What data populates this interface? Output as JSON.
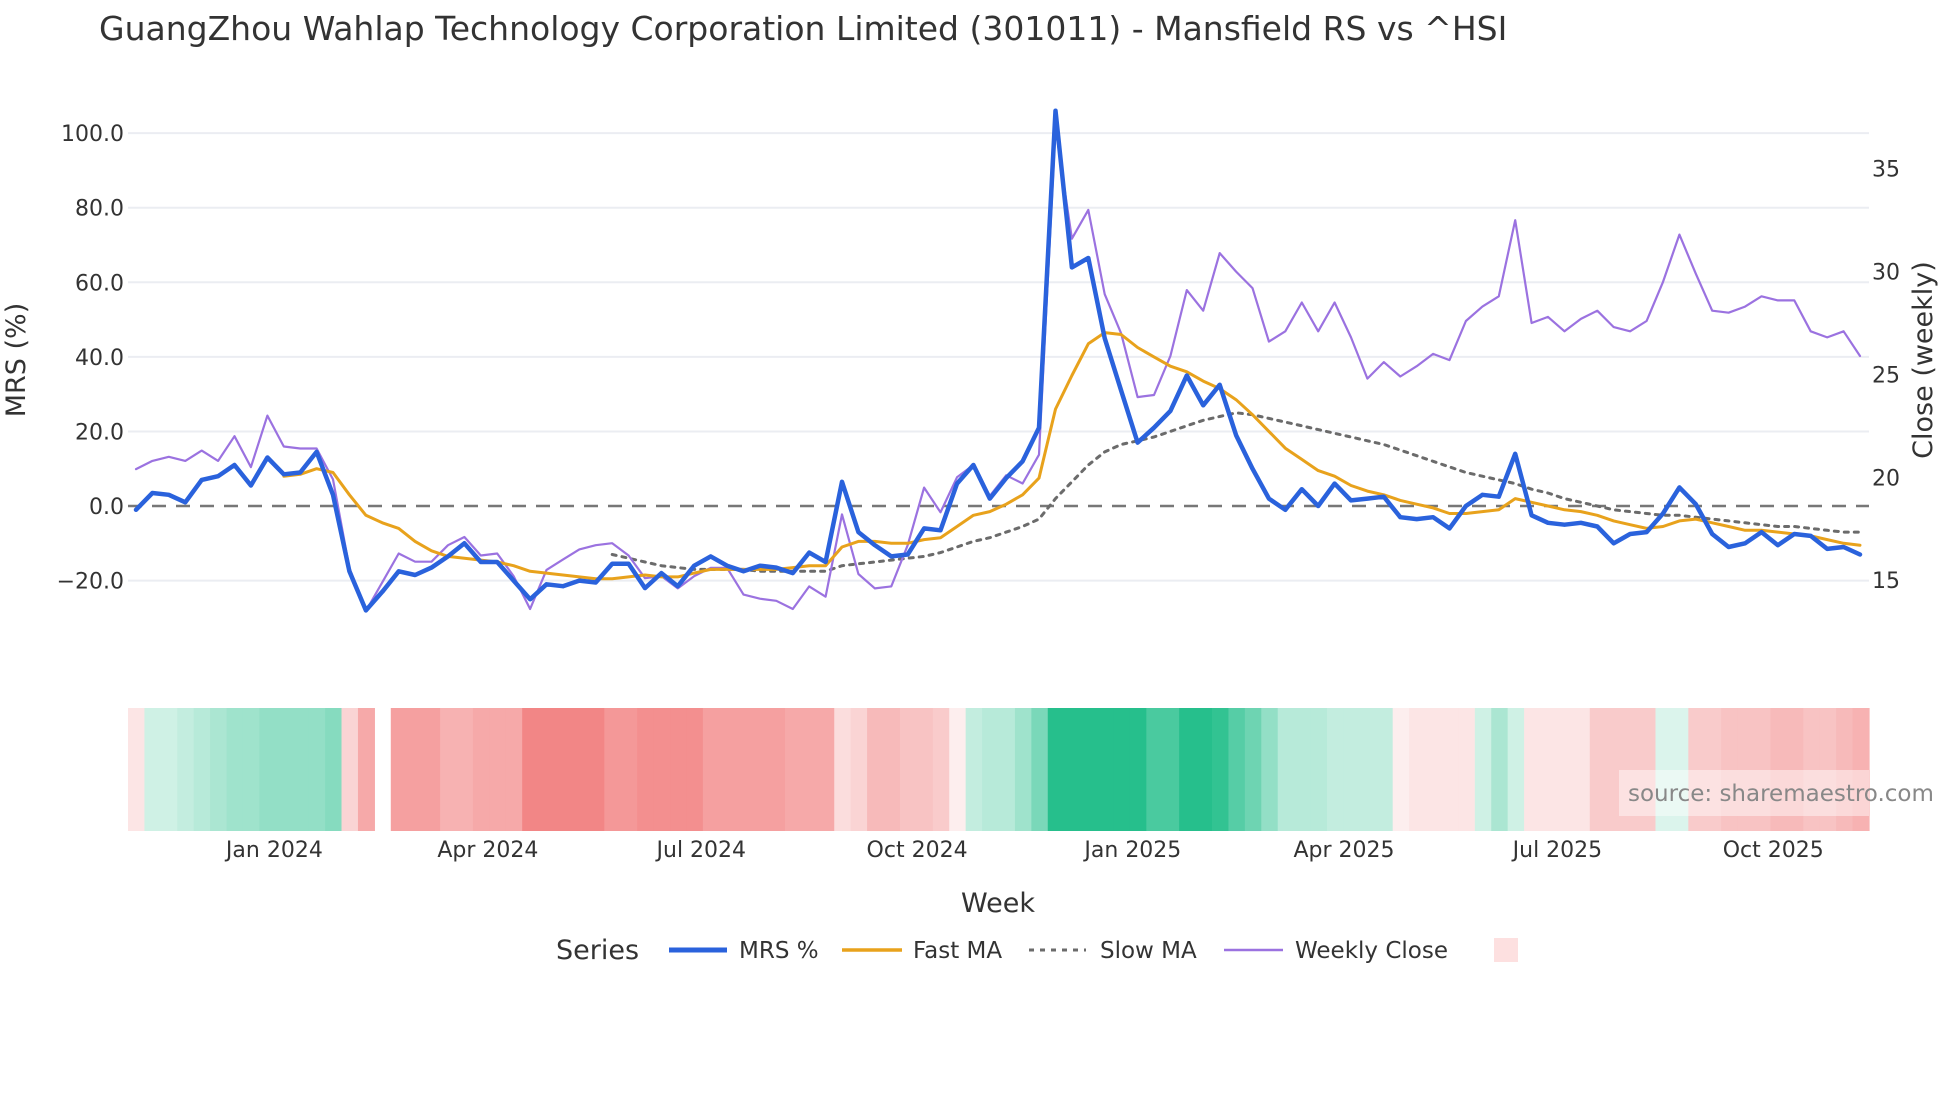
{
  "title": "GuangZhou Wahlap Technology Corporation Limited (301011) - Mansfield RS vs ^HSI",
  "watermark": "source: sharemaestro.com",
  "legend": {
    "title": "Series",
    "items": [
      {
        "label": "MRS %",
        "color": "#2a62dc",
        "style": "solid-thick"
      },
      {
        "label": "Fast MA",
        "color": "#e8a21c",
        "style": "solid"
      },
      {
        "label": "Slow MA",
        "color": "#6b6b6b",
        "style": "dotted"
      },
      {
        "label": "Weekly Close",
        "color": "#9b72e0",
        "style": "solid-thin"
      },
      {
        "label": "",
        "color": "#fde0e0",
        "style": "swatch"
      }
    ]
  },
  "chart_data": {
    "type": "line",
    "title": "GuangZhou Wahlap Technology Corporation Limited (301011) - Mansfield RS vs ^HSI",
    "xlabel": "Week",
    "ylabel": "MRS (%)",
    "y2label": "Close (weekly)",
    "x_start": "2023-11-03",
    "x_step_days": 7,
    "x_ticks": [
      {
        "date": "2024-01-01",
        "label": "Jan 2024"
      },
      {
        "date": "2024-04-01",
        "label": "Apr 2024"
      },
      {
        "date": "2024-07-01",
        "label": "Jul 2024"
      },
      {
        "date": "2024-10-01",
        "label": "Oct 2024"
      },
      {
        "date": "2025-01-01",
        "label": "Jan 2025"
      },
      {
        "date": "2025-04-01",
        "label": "Apr 2025"
      },
      {
        "date": "2025-07-01",
        "label": "Jul 2025"
      },
      {
        "date": "2025-10-01",
        "label": "Oct 2025"
      }
    ],
    "ylim": [
      -37,
      107
    ],
    "y2lim": [
      11.9,
      38.0
    ],
    "y_ticks": [
      100,
      80,
      60,
      40,
      20,
      0,
      -20
    ],
    "y_tick_labels": [
      "100.0",
      "80.0",
      "60.0",
      "40.0",
      "20.0",
      "0.0",
      "−20.0"
    ],
    "y2_ticks": [
      35,
      30,
      25,
      20,
      15
    ],
    "y2_tick_labels": [
      "35",
      "30",
      "25",
      "20",
      "15"
    ],
    "zero_line": 0,
    "grid": true,
    "series": [
      {
        "name": "MRS %",
        "axis": "y",
        "values": [
          -1,
          3.5,
          3,
          1,
          7,
          8,
          11,
          5.5,
          13,
          8.5,
          9,
          14.5,
          3,
          -17.5,
          -28,
          -23,
          -17.5,
          -18.5,
          -16.5,
          -13.5,
          -10,
          -15,
          -15,
          -20,
          -25,
          -21,
          -21.5,
          -20,
          -20.5,
          -15.5,
          -15.5,
          -22,
          -18,
          -21.5,
          -16,
          -13.5,
          -16,
          -17.5,
          -16,
          -16.5,
          -18,
          -12.5,
          -15,
          6.5,
          -7,
          -10.5,
          -13.5,
          -13,
          -6,
          -6.5,
          6,
          11,
          2,
          7.5,
          12,
          21,
          106,
          64,
          66.5,
          45,
          31,
          17,
          21,
          25.5,
          35,
          27,
          32.5,
          19,
          10,
          2,
          -1,
          4.5,
          0,
          6,
          1.5,
          2,
          2.5,
          -3,
          -3.5,
          -3,
          -6,
          0,
          3,
          2.5,
          14,
          -2.5,
          -4.5,
          -5,
          -4.5,
          -5.5,
          -10,
          -7.5,
          -7,
          -2,
          5,
          0.5,
          -7.5,
          -11,
          -10,
          -7,
          -10.5,
          -7.5,
          -8,
          -11.5,
          -11,
          -13
        ]
      },
      {
        "name": "Fast MA",
        "axis": "y",
        "values": [
          null,
          null,
          null,
          null,
          null,
          null,
          null,
          null,
          null,
          8,
          8.5,
          10,
          9,
          3,
          -2.5,
          -4.5,
          -6,
          -9.5,
          -12,
          -13.5,
          -14,
          -14.5,
          -15,
          -16,
          -17.5,
          -18,
          -18.5,
          -19,
          -19.5,
          -19.5,
          -19,
          -18.5,
          -19,
          -19,
          -18,
          -17,
          -17,
          -17,
          -17,
          -17,
          -16.5,
          -16,
          -16,
          -11,
          -9.5,
          -9.5,
          -10,
          -10,
          -9,
          -8.5,
          -5.5,
          -2.5,
          -1.5,
          0.5,
          3,
          7.5,
          26,
          35,
          43.5,
          46.5,
          46,
          42.5,
          40,
          37.5,
          36,
          33.5,
          31.5,
          28.5,
          24.5,
          20,
          15.5,
          12.5,
          9.5,
          8,
          5.5,
          4,
          3,
          1.5,
          0.5,
          -0.5,
          -2,
          -2,
          -1.5,
          -1,
          2,
          1,
          0,
          -1,
          -1.5,
          -2.5,
          -4,
          -5,
          -6,
          -5.5,
          -4,
          -3.5,
          -4.5,
          -5.5,
          -6.5,
          -6.5,
          -7,
          -7.5,
          -8,
          -9,
          -10,
          -10.5
        ]
      },
      {
        "name": "Slow MA",
        "axis": "y",
        "values": [
          null,
          null,
          null,
          null,
          null,
          null,
          null,
          null,
          null,
          null,
          null,
          null,
          null,
          null,
          null,
          null,
          null,
          null,
          null,
          null,
          null,
          null,
          null,
          null,
          null,
          null,
          null,
          null,
          null,
          -13,
          -14,
          -15,
          -16,
          -16.5,
          -17,
          -17,
          -17,
          -17,
          -17.5,
          -17.5,
          -17.5,
          -17.5,
          -17.5,
          -16,
          -15.5,
          -15,
          -14.5,
          -14,
          -13.5,
          -12.5,
          -11,
          -9.5,
          -8.5,
          -7,
          -5.5,
          -3.5,
          2,
          6.5,
          11,
          14.5,
          16.5,
          17.5,
          18.5,
          20,
          21.5,
          23,
          24,
          25,
          24.5,
          23.5,
          22.5,
          21.5,
          20.5,
          19.5,
          18.5,
          17.5,
          16.5,
          15,
          13.5,
          12,
          10.5,
          9,
          8,
          7,
          6,
          4.5,
          3.5,
          2,
          1,
          0,
          -1,
          -1.5,
          -2,
          -2.5,
          -2.5,
          -3,
          -3.5,
          -4,
          -4.5,
          -5,
          -5.5,
          -5.5,
          -6,
          -6.5,
          -7,
          -7
        ]
      },
      {
        "name": "Weekly Close",
        "axis": "y2",
        "values": [
          20.4,
          20.8,
          21.0,
          20.8,
          21.3,
          20.8,
          22.0,
          20.5,
          23.0,
          21.5,
          21.4,
          21.4,
          19.9,
          15.6,
          13.5,
          14.9,
          16.3,
          15.9,
          15.9,
          16.7,
          17.1,
          16.2,
          16.3,
          15.2,
          13.6,
          15.5,
          16.0,
          16.5,
          16.7,
          16.8,
          16.2,
          15.1,
          15.2,
          14.6,
          15.2,
          15.6,
          15.6,
          14.3,
          14.1,
          14.0,
          13.6,
          14.7,
          14.2,
          18.2,
          15.3,
          14.6,
          14.7,
          16.7,
          19.5,
          18.3,
          20.0,
          20.6,
          19.1,
          20.1,
          19.7,
          21.1,
          37.0,
          31.6,
          33.0,
          28.9,
          27.0,
          23.9,
          24.0,
          25.9,
          29.1,
          28.1,
          30.9,
          30.0,
          29.2,
          26.6,
          27.1,
          28.5,
          27.1,
          28.5,
          26.8,
          24.8,
          25.6,
          24.9,
          25.4,
          26.0,
          25.7,
          27.6,
          28.3,
          28.8,
          32.5,
          27.5,
          27.8,
          27.1,
          27.7,
          28.1,
          27.3,
          27.1,
          27.6,
          29.5,
          31.8,
          29.9,
          28.1,
          28.0,
          28.3,
          28.8,
          28.6,
          28.6,
          27.1,
          26.8,
          27.1,
          25.9
        ]
      }
    ],
    "heatmap": {
      "positive_color": "#26bf8c",
      "negative_color": "#ee6464",
      "values": [
        -0.15,
        0.2,
        0.2,
        0.25,
        0.3,
        0.35,
        0.4,
        0.4,
        0.45,
        0.45,
        0.45,
        0.45,
        0.5,
        -0.25,
        -0.5,
        null,
        -0.55,
        -0.55,
        -0.55,
        -0.45,
        -0.45,
        -0.5,
        -0.5,
        -0.5,
        -0.7,
        -0.7,
        -0.7,
        -0.7,
        -0.7,
        -0.6,
        -0.6,
        -0.65,
        -0.65,
        -0.65,
        -0.65,
        -0.55,
        -0.55,
        -0.55,
        -0.55,
        -0.55,
        -0.5,
        -0.5,
        -0.5,
        -0.2,
        -0.25,
        -0.4,
        -0.4,
        -0.35,
        -0.35,
        -0.3,
        -0.1,
        0.25,
        0.3,
        0.3,
        0.4,
        0.55,
        0.9,
        0.9,
        0.9,
        0.9,
        0.9,
        0.9,
        0.75,
        0.75,
        0.9,
        0.9,
        0.85,
        0.7,
        0.6,
        0.45,
        0.3,
        0.3,
        0.3,
        0.25,
        0.25,
        0.25,
        0.25,
        -0.1,
        -0.15,
        -0.15,
        -0.15,
        -0.15,
        0.2,
        0.35,
        0.2,
        -0.15,
        -0.15,
        -0.15,
        -0.15,
        -0.3,
        -0.3,
        -0.3,
        -0.3,
        0.15,
        0.15,
        -0.3,
        -0.3,
        -0.35,
        -0.35,
        -0.35,
        -0.4,
        -0.4,
        -0.35,
        -0.35,
        -0.4,
        -0.45
      ]
    }
  }
}
